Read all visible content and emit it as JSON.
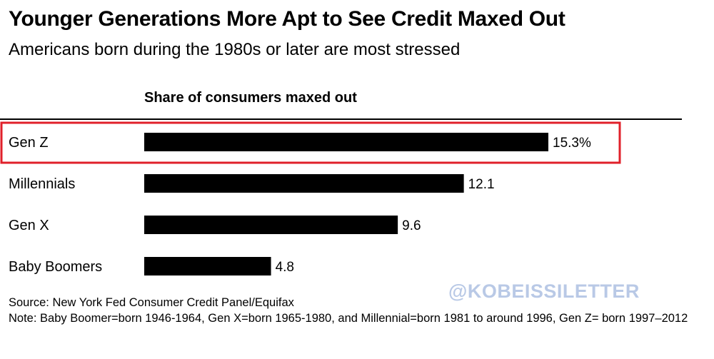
{
  "header": {
    "title": "Younger Generations More Apt to See Credit Maxed Out",
    "subtitle": "Americans born during the 1980s or later are most stressed"
  },
  "chart_data": {
    "type": "bar",
    "orientation": "horizontal",
    "title": "Younger Generations More Apt to See Credit Maxed Out",
    "subtitle": "Americans born during the 1980s or later are most stressed",
    "xlabel": "Share of consumers maxed out",
    "ylabel": "",
    "categories": [
      "Gen Z",
      "Millennials",
      "Gen X",
      "Baby Boomers"
    ],
    "values": [
      15.3,
      12.1,
      9.6,
      4.8
    ],
    "value_labels": [
      "15.3%",
      "12.1",
      "9.6",
      "4.8"
    ],
    "unit": "%",
    "xlim": [
      0,
      15.3
    ],
    "highlighted_category": "Gen Z",
    "bar_color": "#000000",
    "highlight_color": "#e0202a"
  },
  "footer": {
    "source": "Source: New York Fed Consumer Credit Panel/Equifax",
    "note": "Note: Baby Boomer=born 1946-1964, Gen X=born 1965-1980, and Millennial=born 1981 to around 1996, Gen Z= born 1997–2012"
  },
  "watermark": "@KOBEISSILETTER"
}
